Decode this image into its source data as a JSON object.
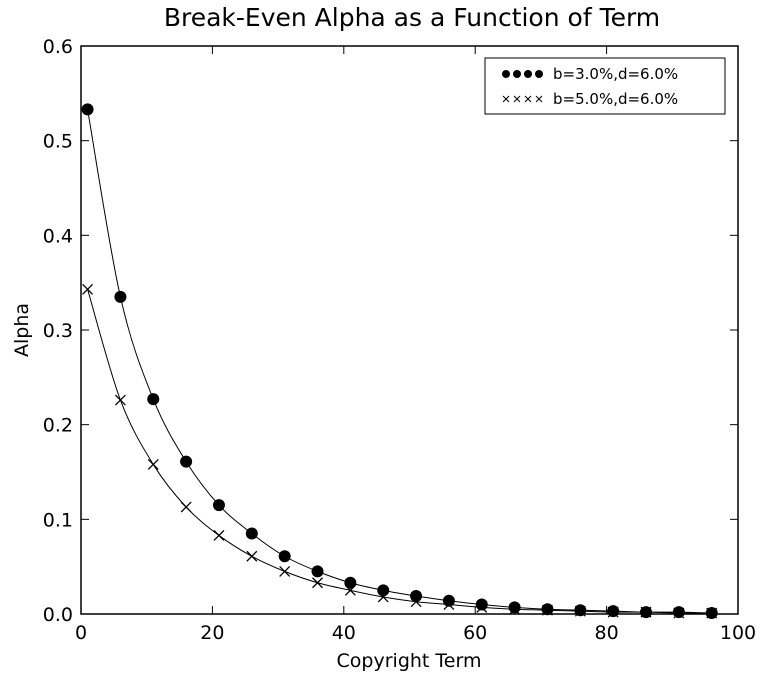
{
  "chart_data": {
    "type": "line",
    "title": "Break-Even Alpha as a Function of Term",
    "xlabel": "Copyright Term",
    "ylabel": "Alpha",
    "xlim": [
      0,
      100
    ],
    "ylim": [
      0.0,
      0.6
    ],
    "xticks": [
      0,
      20,
      40,
      60,
      80,
      100
    ],
    "yticks": [
      0.0,
      0.1,
      0.2,
      0.3,
      0.4,
      0.5,
      0.6
    ],
    "xtick_labels": [
      "0",
      "20",
      "40",
      "60",
      "80",
      "100"
    ],
    "ytick_labels": [
      "0.0",
      "0.1",
      "0.2",
      "0.3",
      "0.4",
      "0.5",
      "0.6"
    ],
    "grid": false,
    "legend_position": "top-right",
    "x": [
      1,
      6,
      11,
      16,
      21,
      26,
      31,
      36,
      41,
      46,
      51,
      56,
      61,
      66,
      71,
      76,
      81,
      86,
      91,
      96
    ],
    "series": [
      {
        "name": "b=3.0%,d=6.0%",
        "marker": "circle",
        "color": "#000000",
        "values": [
          0.533,
          0.335,
          0.227,
          0.161,
          0.115,
          0.085,
          0.061,
          0.045,
          0.033,
          0.025,
          0.019,
          0.014,
          0.01,
          0.007,
          0.005,
          0.004,
          0.003,
          0.002,
          0.002,
          0.001
        ]
      },
      {
        "name": "b=5.0%,d=6.0%",
        "marker": "x",
        "color": "#000000",
        "values": [
          0.343,
          0.226,
          0.158,
          0.113,
          0.083,
          0.061,
          0.045,
          0.033,
          0.025,
          0.018,
          0.013,
          0.01,
          0.007,
          0.005,
          0.004,
          0.003,
          0.002,
          0.002,
          0.001,
          0.001
        ]
      }
    ]
  }
}
